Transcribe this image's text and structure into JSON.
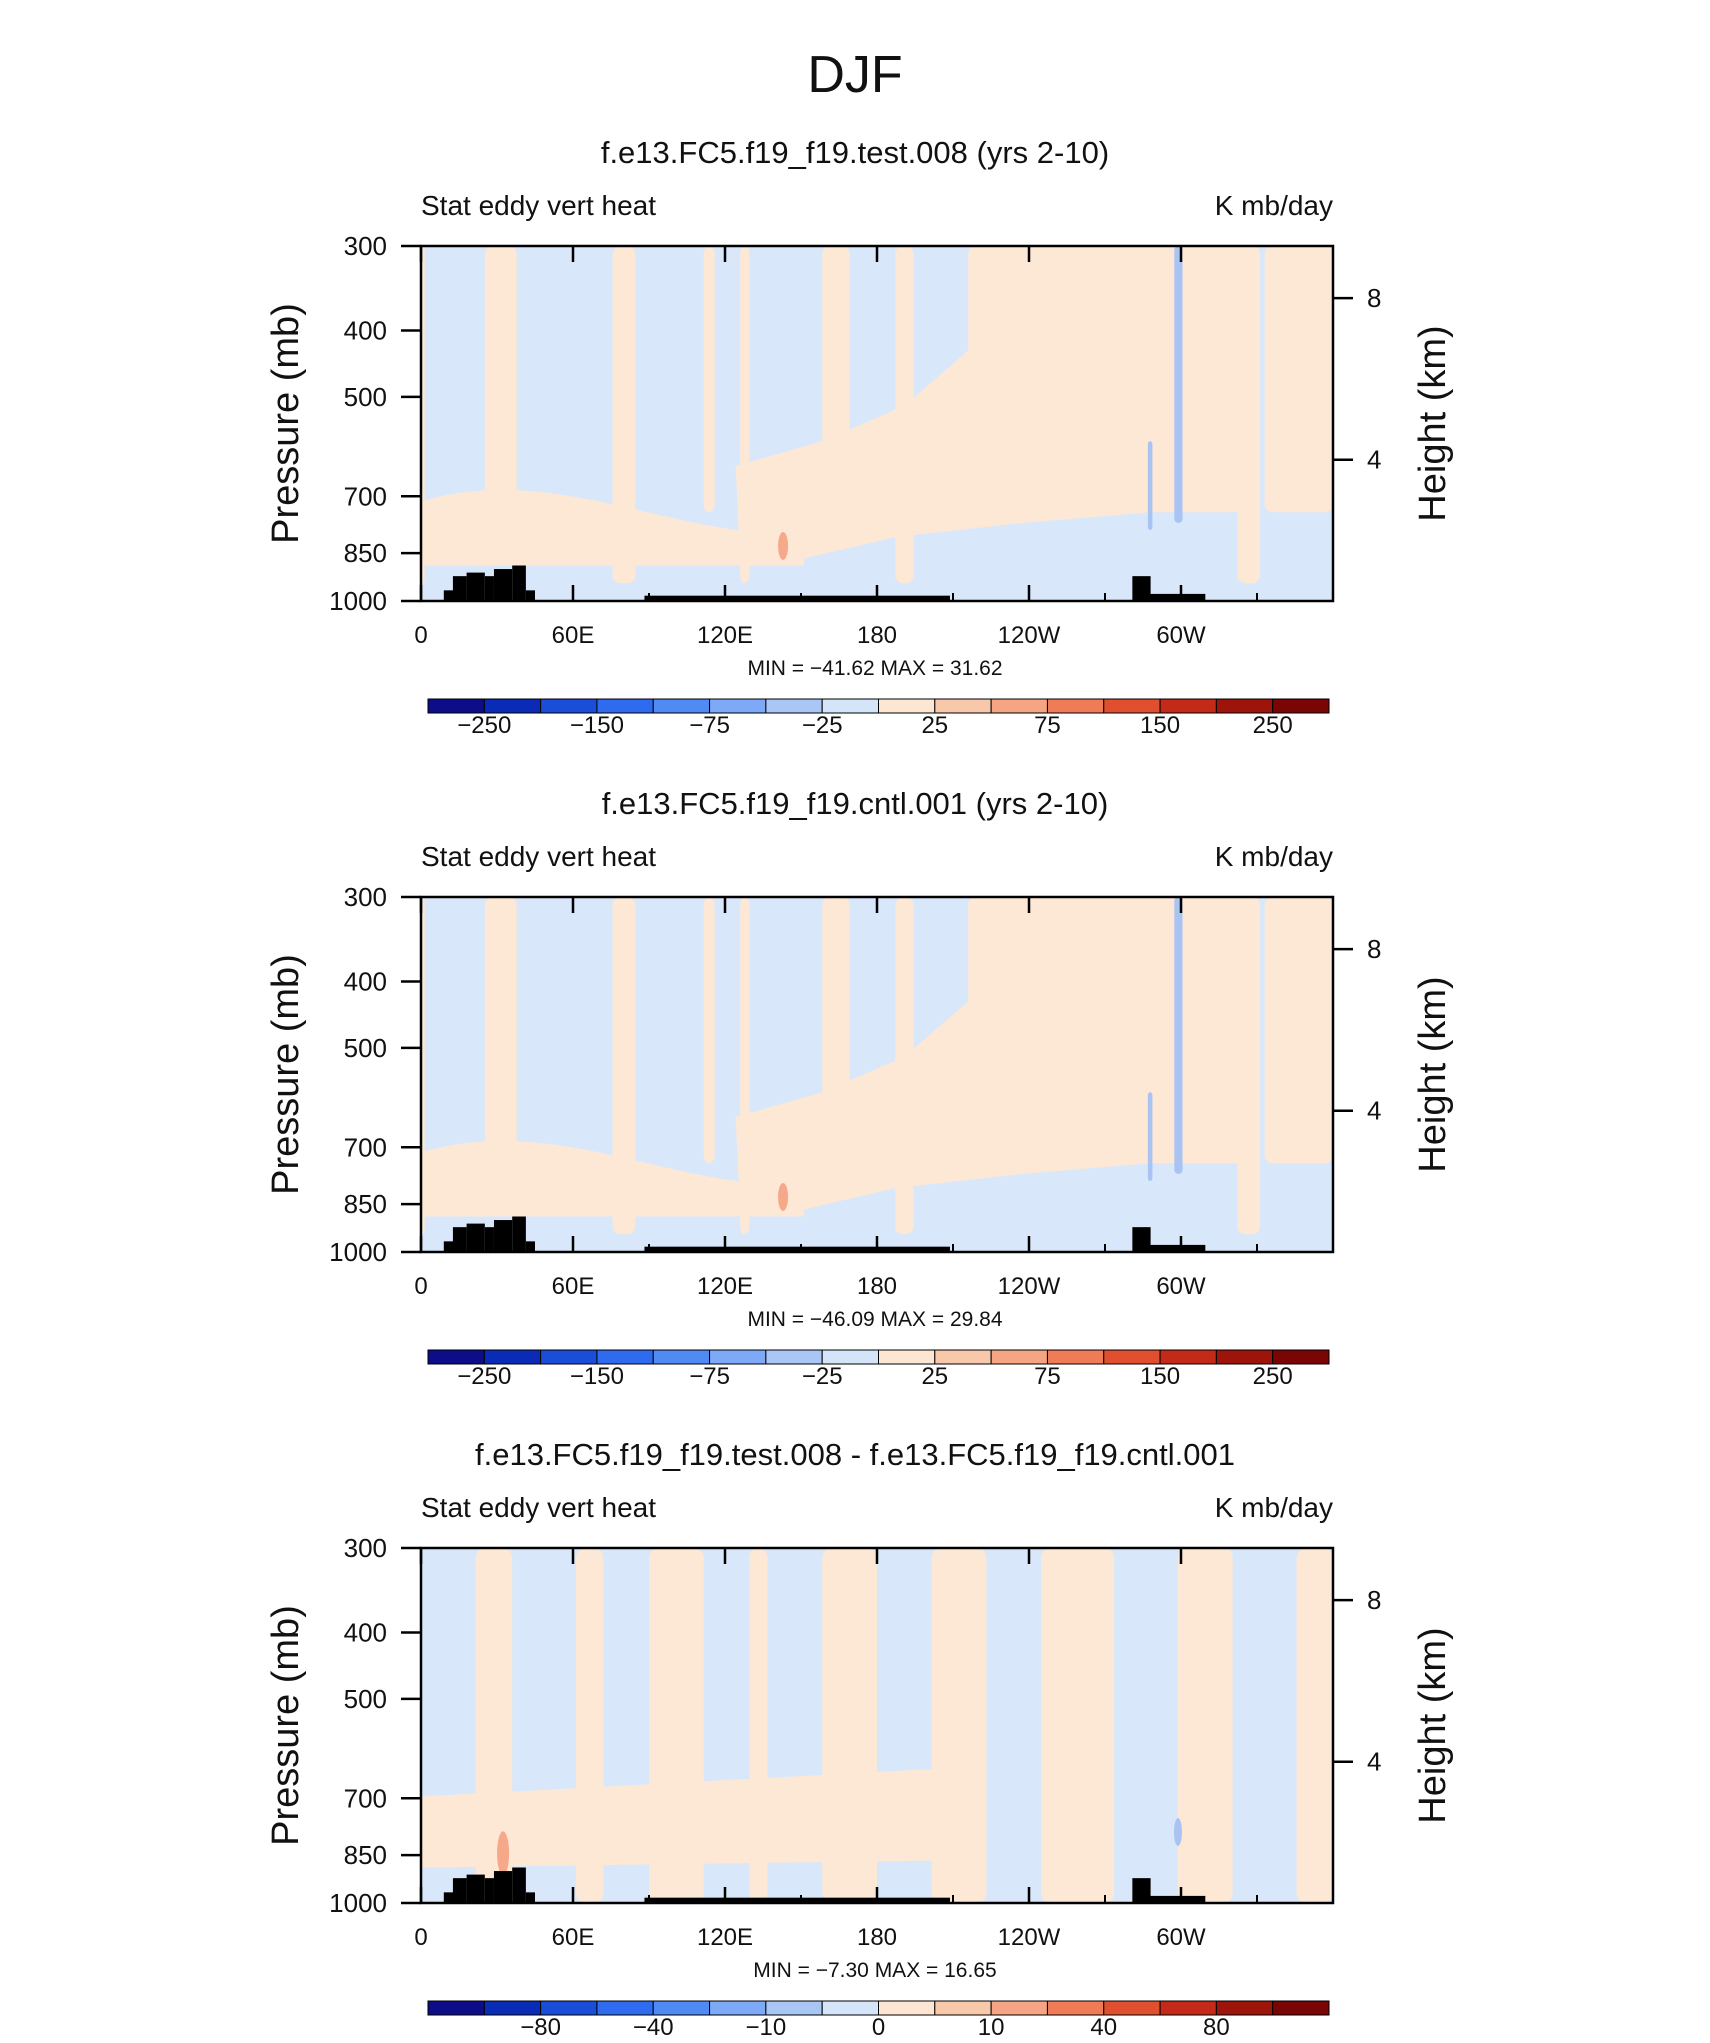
{
  "main_title": "DJF",
  "chart_data": [
    {
      "type": "heatmap",
      "title": "f.e13.FC5.f19_f19.test.008 (yrs 2-10)",
      "left_label": "Stat eddy vert heat",
      "right_label": "K mb/day",
      "ylabel": "Pressure (mb)",
      "ylabel_right": "Height (km)",
      "yticks": [
        "300",
        "400",
        "500",
        "700",
        "850",
        "1000"
      ],
      "yticks_right": [
        "8",
        "4"
      ],
      "xticks": [
        "0",
        "60E",
        "120E",
        "180",
        "120W",
        "60W"
      ],
      "stats": "MIN =  −41.62   MAX =   31.62",
      "colorbar_labels": [
        "−250",
        "−150",
        "−75",
        "−25",
        "25",
        "75",
        "150",
        "250"
      ]
    },
    {
      "type": "heatmap",
      "title": "f.e13.FC5.f19_f19.cntl.001 (yrs 2-10)",
      "left_label": "Stat eddy vert heat",
      "right_label": "K mb/day",
      "ylabel": "Pressure (mb)",
      "ylabel_right": "Height (km)",
      "yticks": [
        "300",
        "400",
        "500",
        "700",
        "850",
        "1000"
      ],
      "yticks_right": [
        "8",
        "4"
      ],
      "xticks": [
        "0",
        "60E",
        "120E",
        "180",
        "120W",
        "60W"
      ],
      "stats": "MIN =  −46.09   MAX =   29.84",
      "colorbar_labels": [
        "−250",
        "−150",
        "−75",
        "−25",
        "25",
        "75",
        "150",
        "250"
      ]
    },
    {
      "type": "heatmap",
      "title": "f.e13.FC5.f19_f19.test.008 - f.e13.FC5.f19_f19.cntl.001",
      "left_label": "Stat eddy vert heat",
      "right_label": "K mb/day",
      "ylabel": "Pressure (mb)",
      "ylabel_right": "Height (km)",
      "yticks": [
        "300",
        "400",
        "500",
        "700",
        "850",
        "1000"
      ],
      "yticks_right": [
        "8",
        "4"
      ],
      "xticks": [
        "0",
        "60E",
        "120E",
        "180",
        "120W",
        "60W"
      ],
      "stats": "MIN =   −7.30   MAX =   16.65",
      "colorbar_labels": [
        "−80",
        "−40",
        "−10",
        "0",
        "10",
        "40",
        "80"
      ]
    }
  ],
  "colorbar_colors": [
    "#0d0d8a",
    "#0a2bb5",
    "#1a4ed8",
    "#2e6bef",
    "#4f8af5",
    "#7ea9f7",
    "#aac6f5",
    "#d5e5f9",
    "#fde7d2",
    "#f8c8aa",
    "#f5a583",
    "#ef7c56",
    "#e0502e",
    "#c42a17",
    "#9d140b",
    "#7a0505"
  ],
  "field_colors": {
    "neg_light": "#d8e8fa",
    "pos_light": "#fde8d5",
    "neg_mid": "#a9c4f3",
    "pos_mid": "#f5a98a",
    "topo": "#000000"
  }
}
